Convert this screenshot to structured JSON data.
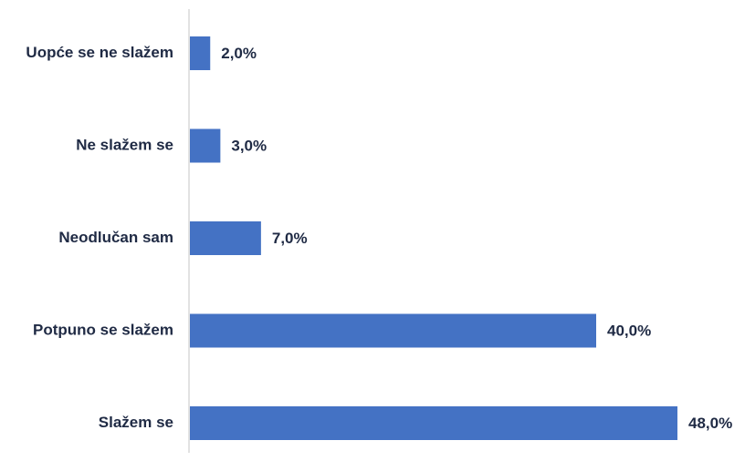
{
  "chart_data": {
    "type": "bar",
    "orientation": "horizontal",
    "categories": [
      "Uopće se ne slažem",
      "Ne slažem se",
      "Neodlučan sam",
      "Potpuno se slažem",
      "Slažem se"
    ],
    "values": [
      2.0,
      3.0,
      7.0,
      40.0,
      48.0
    ],
    "value_labels": [
      "2,0%",
      "3,0%",
      "7,0%",
      "40,0%",
      "48,0%"
    ],
    "unit": "%",
    "xlim": [
      0,
      48
    ],
    "grid": false,
    "legend": "none",
    "title": "",
    "xlabel": "",
    "ylabel": ""
  },
  "colors": {
    "bar": "#4472c4",
    "axis": "#d9d9d9",
    "text": "#1f2a44"
  }
}
